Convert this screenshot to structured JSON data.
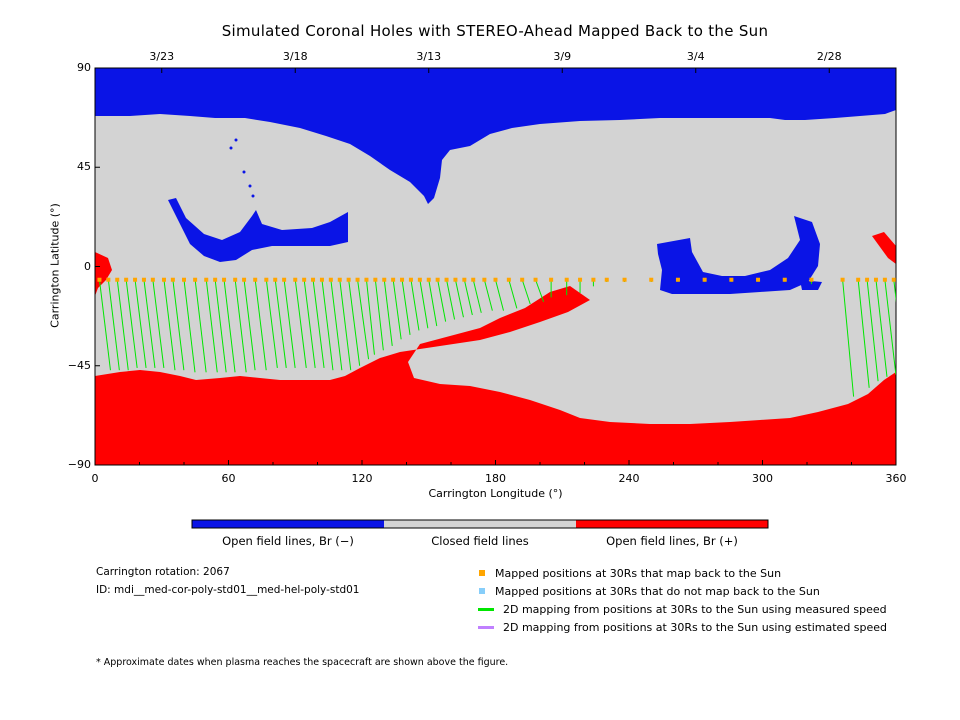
{
  "title": "Simulated Coronal Holes with STEREO-Ahead Mapped Back to the Sun",
  "chart_data": {
    "type": "heatmap",
    "xlabel": "Carrington Longitude (°)",
    "ylabel": "Carrington Latitude (°)",
    "xlim": [
      0,
      360
    ],
    "ylim": [
      -90,
      90
    ],
    "x_ticks": [
      0,
      60,
      120,
      180,
      240,
      300,
      360
    ],
    "x_tick_labels": [
      "0",
      "60",
      "120",
      "180",
      "240",
      "300",
      "360"
    ],
    "y_ticks": [
      90,
      45,
      0,
      -45,
      -90
    ],
    "y_tick_labels": [
      "90",
      "45",
      "0",
      "−45",
      "−90"
    ],
    "top_axis_dates": [
      {
        "label": "3/23",
        "lon": 30
      },
      {
        "label": "3/18",
        "lon": 90
      },
      {
        "label": "3/13",
        "lon": 150
      },
      {
        "label": "3/9",
        "lon": 210
      },
      {
        "label": "3/4",
        "lon": 270
      },
      {
        "label": "2/28",
        "lon": 330
      }
    ],
    "colorbar": [
      {
        "label": "Open field lines, Br (−)",
        "color": "#0a14e6"
      },
      {
        "label": "Closed field lines",
        "color": "#d3d3d3"
      },
      {
        "label": "Open field lines, Br (+)",
        "color": "#ff0000"
      }
    ],
    "spacecraft_latitude": -6,
    "mapped_points_measured": [
      {
        "lon": 2,
        "footlat": -47
      },
      {
        "lon": 6,
        "footlat": -47
      },
      {
        "lon": 10,
        "footlat": -47
      },
      {
        "lon": 14,
        "footlat": -46
      },
      {
        "lon": 18,
        "footlat": -46
      },
      {
        "lon": 22,
        "footlat": -46
      },
      {
        "lon": 26,
        "footlat": -46
      },
      {
        "lon": 31,
        "footlat": -47
      },
      {
        "lon": 35,
        "footlat": -47
      },
      {
        "lon": 40,
        "footlat": -48
      },
      {
        "lon": 45,
        "footlat": -48
      },
      {
        "lon": 50,
        "footlat": -48
      },
      {
        "lon": 54,
        "footlat": -48
      },
      {
        "lon": 58,
        "footlat": -48
      },
      {
        "lon": 63,
        "footlat": -48
      },
      {
        "lon": 67,
        "footlat": -47
      },
      {
        "lon": 72,
        "footlat": -47
      },
      {
        "lon": 77,
        "footlat": -46
      },
      {
        "lon": 81,
        "footlat": -46
      },
      {
        "lon": 85,
        "footlat": -46
      },
      {
        "lon": 90,
        "footlat": -46
      },
      {
        "lon": 94,
        "footlat": -46
      },
      {
        "lon": 98,
        "footlat": -46
      },
      {
        "lon": 102,
        "footlat": -47
      },
      {
        "lon": 106,
        "footlat": -47
      },
      {
        "lon": 110,
        "footlat": -47
      },
      {
        "lon": 114,
        "footlat": -45
      },
      {
        "lon": 118,
        "footlat": -42
      },
      {
        "lon": 122,
        "footlat": -40
      },
      {
        "lon": 126,
        "footlat": -38
      },
      {
        "lon": 130,
        "footlat": -36
      },
      {
        "lon": 134,
        "footlat": -33
      },
      {
        "lon": 138,
        "footlat": -31
      },
      {
        "lon": 142,
        "footlat": -29
      },
      {
        "lon": 146,
        "footlat": -28
      },
      {
        "lon": 150,
        "footlat": -27
      },
      {
        "lon": 154,
        "footlat": -25
      },
      {
        "lon": 158,
        "footlat": -24
      },
      {
        "lon": 162,
        "footlat": -23
      },
      {
        "lon": 166,
        "footlat": -22
      },
      {
        "lon": 170,
        "footlat": -21
      },
      {
        "lon": 175,
        "footlat": -20
      },
      {
        "lon": 180,
        "footlat": -20
      },
      {
        "lon": 186,
        "footlat": -19
      },
      {
        "lon": 192,
        "footlat": -17
      },
      {
        "lon": 198,
        "footlat": -16
      },
      {
        "lon": 205,
        "footlat": -14
      },
      {
        "lon": 212,
        "footlat": -13
      },
      {
        "lon": 218,
        "footlat": -12
      },
      {
        "lon": 224,
        "footlat": -9
      },
      {
        "lon": 230,
        "footlat": -7
      },
      {
        "lon": 238,
        "footlat": -7
      },
      {
        "lon": 250,
        "footlat": -7
      },
      {
        "lon": 262,
        "footlat": -7
      },
      {
        "lon": 274,
        "footlat": -7
      },
      {
        "lon": 286,
        "footlat": -7
      },
      {
        "lon": 298,
        "footlat": -7
      },
      {
        "lon": 310,
        "footlat": -7
      },
      {
        "lon": 322,
        "footlat": -8
      },
      {
        "lon": 336,
        "footlat": -59
      },
      {
        "lon": 343,
        "footlat": -55
      },
      {
        "lon": 347,
        "footlat": -52
      },
      {
        "lon": 351,
        "footlat": -50
      },
      {
        "lon": 355,
        "footlat": -49
      },
      {
        "lon": 359,
        "footlat": -48
      }
    ]
  },
  "colorbar_labels": {
    "neg": "Open field lines, Br (−)",
    "closed": "Closed field lines",
    "pos": "Open field lines, Br (+)"
  },
  "info": {
    "rotation": "Carrington rotation: 2067",
    "id": "ID: mdi__med-cor-poly-std01__med-hel-poly-std01"
  },
  "legend": [
    {
      "label": "Mapped positions at 30Rs that map back to the Sun",
      "color": "#ffa500",
      "kind": "square"
    },
    {
      "label": "Mapped positions at 30Rs that do not map back to the Sun",
      "color": "#87cefa",
      "kind": "square"
    },
    {
      "label": "2D mapping from positions at 30Rs to the Sun using measured speed",
      "color": "#00e600",
      "kind": "line"
    },
    {
      "label": "2D mapping from positions at 30Rs to the Sun using estimated speed",
      "color": "#c080ff",
      "kind": "line"
    }
  ],
  "footnote": "* Approximate dates when plasma reaches the spacecraft are shown above the figure."
}
